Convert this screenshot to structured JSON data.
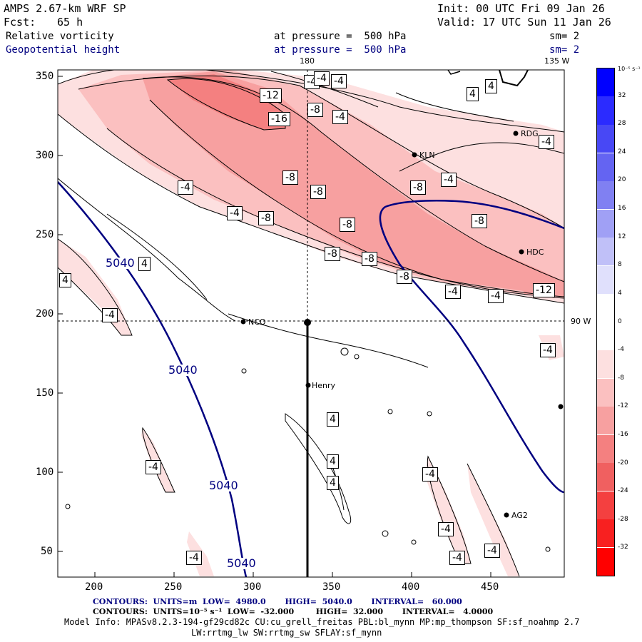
{
  "header": {
    "title": "AMPS 2.67-km WRF SP",
    "init": "Init: 00 UTC Fri 09 Jan 26",
    "fcst_label": "Fcst:",
    "fcst_value": "65 h",
    "valid": "Valid: 17 UTC Sun 11 Jan 26",
    "field1_name": "Relative vorticity",
    "field1_level": "at pressure =  500 hPa",
    "field1_sm": "sm= 2",
    "field2_name": "Geopotential height",
    "field2_level": "at pressure =  500 hPa",
    "field2_sm": "sm= 2"
  },
  "axes": {
    "x_ticks": [
      "200",
      "250",
      "300",
      "350",
      "400",
      "450"
    ],
    "y_ticks": [
      "350",
      "300",
      "250",
      "200",
      "150",
      "100",
      "50"
    ],
    "lon_top_180": "180",
    "lon_top_135": "135 W",
    "lon_right_90": "90 W"
  },
  "stations": {
    "rdg": "RDG",
    "kln": "KLN",
    "hdc": "HDC",
    "nco": "NCO",
    "henry": "Henry",
    "ag2": "AG2"
  },
  "contour_labels": {
    "height": [
      "5040",
      "5040",
      "5040",
      "5040"
    ],
    "vort": [
      "-4",
      "4",
      "-12",
      "-8",
      "-4",
      "4",
      "-16",
      "-4",
      "-8",
      "-4",
      "-4",
      "-8",
      "-4",
      "-8",
      "-8",
      "-8",
      "-8",
      "-8",
      "-8",
      "-8",
      "-12",
      "-4",
      "-4",
      "-4",
      "-4",
      "-4",
      "4",
      "4",
      "4",
      "4",
      "4",
      "-4",
      "-4",
      "-4",
      "-4",
      "-4",
      "-4",
      "-4"
    ]
  },
  "colorbar": {
    "unit": "10⁻⁵ s⁻¹",
    "labels": [
      "32",
      "28",
      "24",
      "20",
      "16",
      "12",
      "8",
      "4",
      "0",
      "-4",
      "-8",
      "-12",
      "-16",
      "-20",
      "-24",
      "-28",
      "-32"
    ],
    "colors": [
      "#0000ff",
      "#2b2bff",
      "#4848f5",
      "#6464f2",
      "#8080f2",
      "#a0a0f5",
      "#c0c0f8",
      "#e0e0fc",
      "#ffffff",
      "#ffffff",
      "#fde0e0",
      "#fbc0c0",
      "#f7a0a0",
      "#f48080",
      "#f06060",
      "#f44040",
      "#f82020",
      "#ff0000"
    ]
  },
  "footer": {
    "line1": "CONTOURS:  UNITS=m  LOW=  4980.0       HIGH=  5040.0       INTERVAL=   60.000",
    "line2": "CONTOURS:  UNITS=10⁻⁵ s⁻¹  LOW=  -32.000        HIGH=  32.000       INTERVAL=   4.0000",
    "line3": "Model Info: MPASv8.2.3-194-gf29cd82c CU:cu_grell_freitas PBL:bl_mynn MP:mp_thompson SF:sf_noahmp 2.7",
    "line4": "LW:rrtmg_lw SW:rrtmg_sw SFLAY:sf_mynn"
  }
}
